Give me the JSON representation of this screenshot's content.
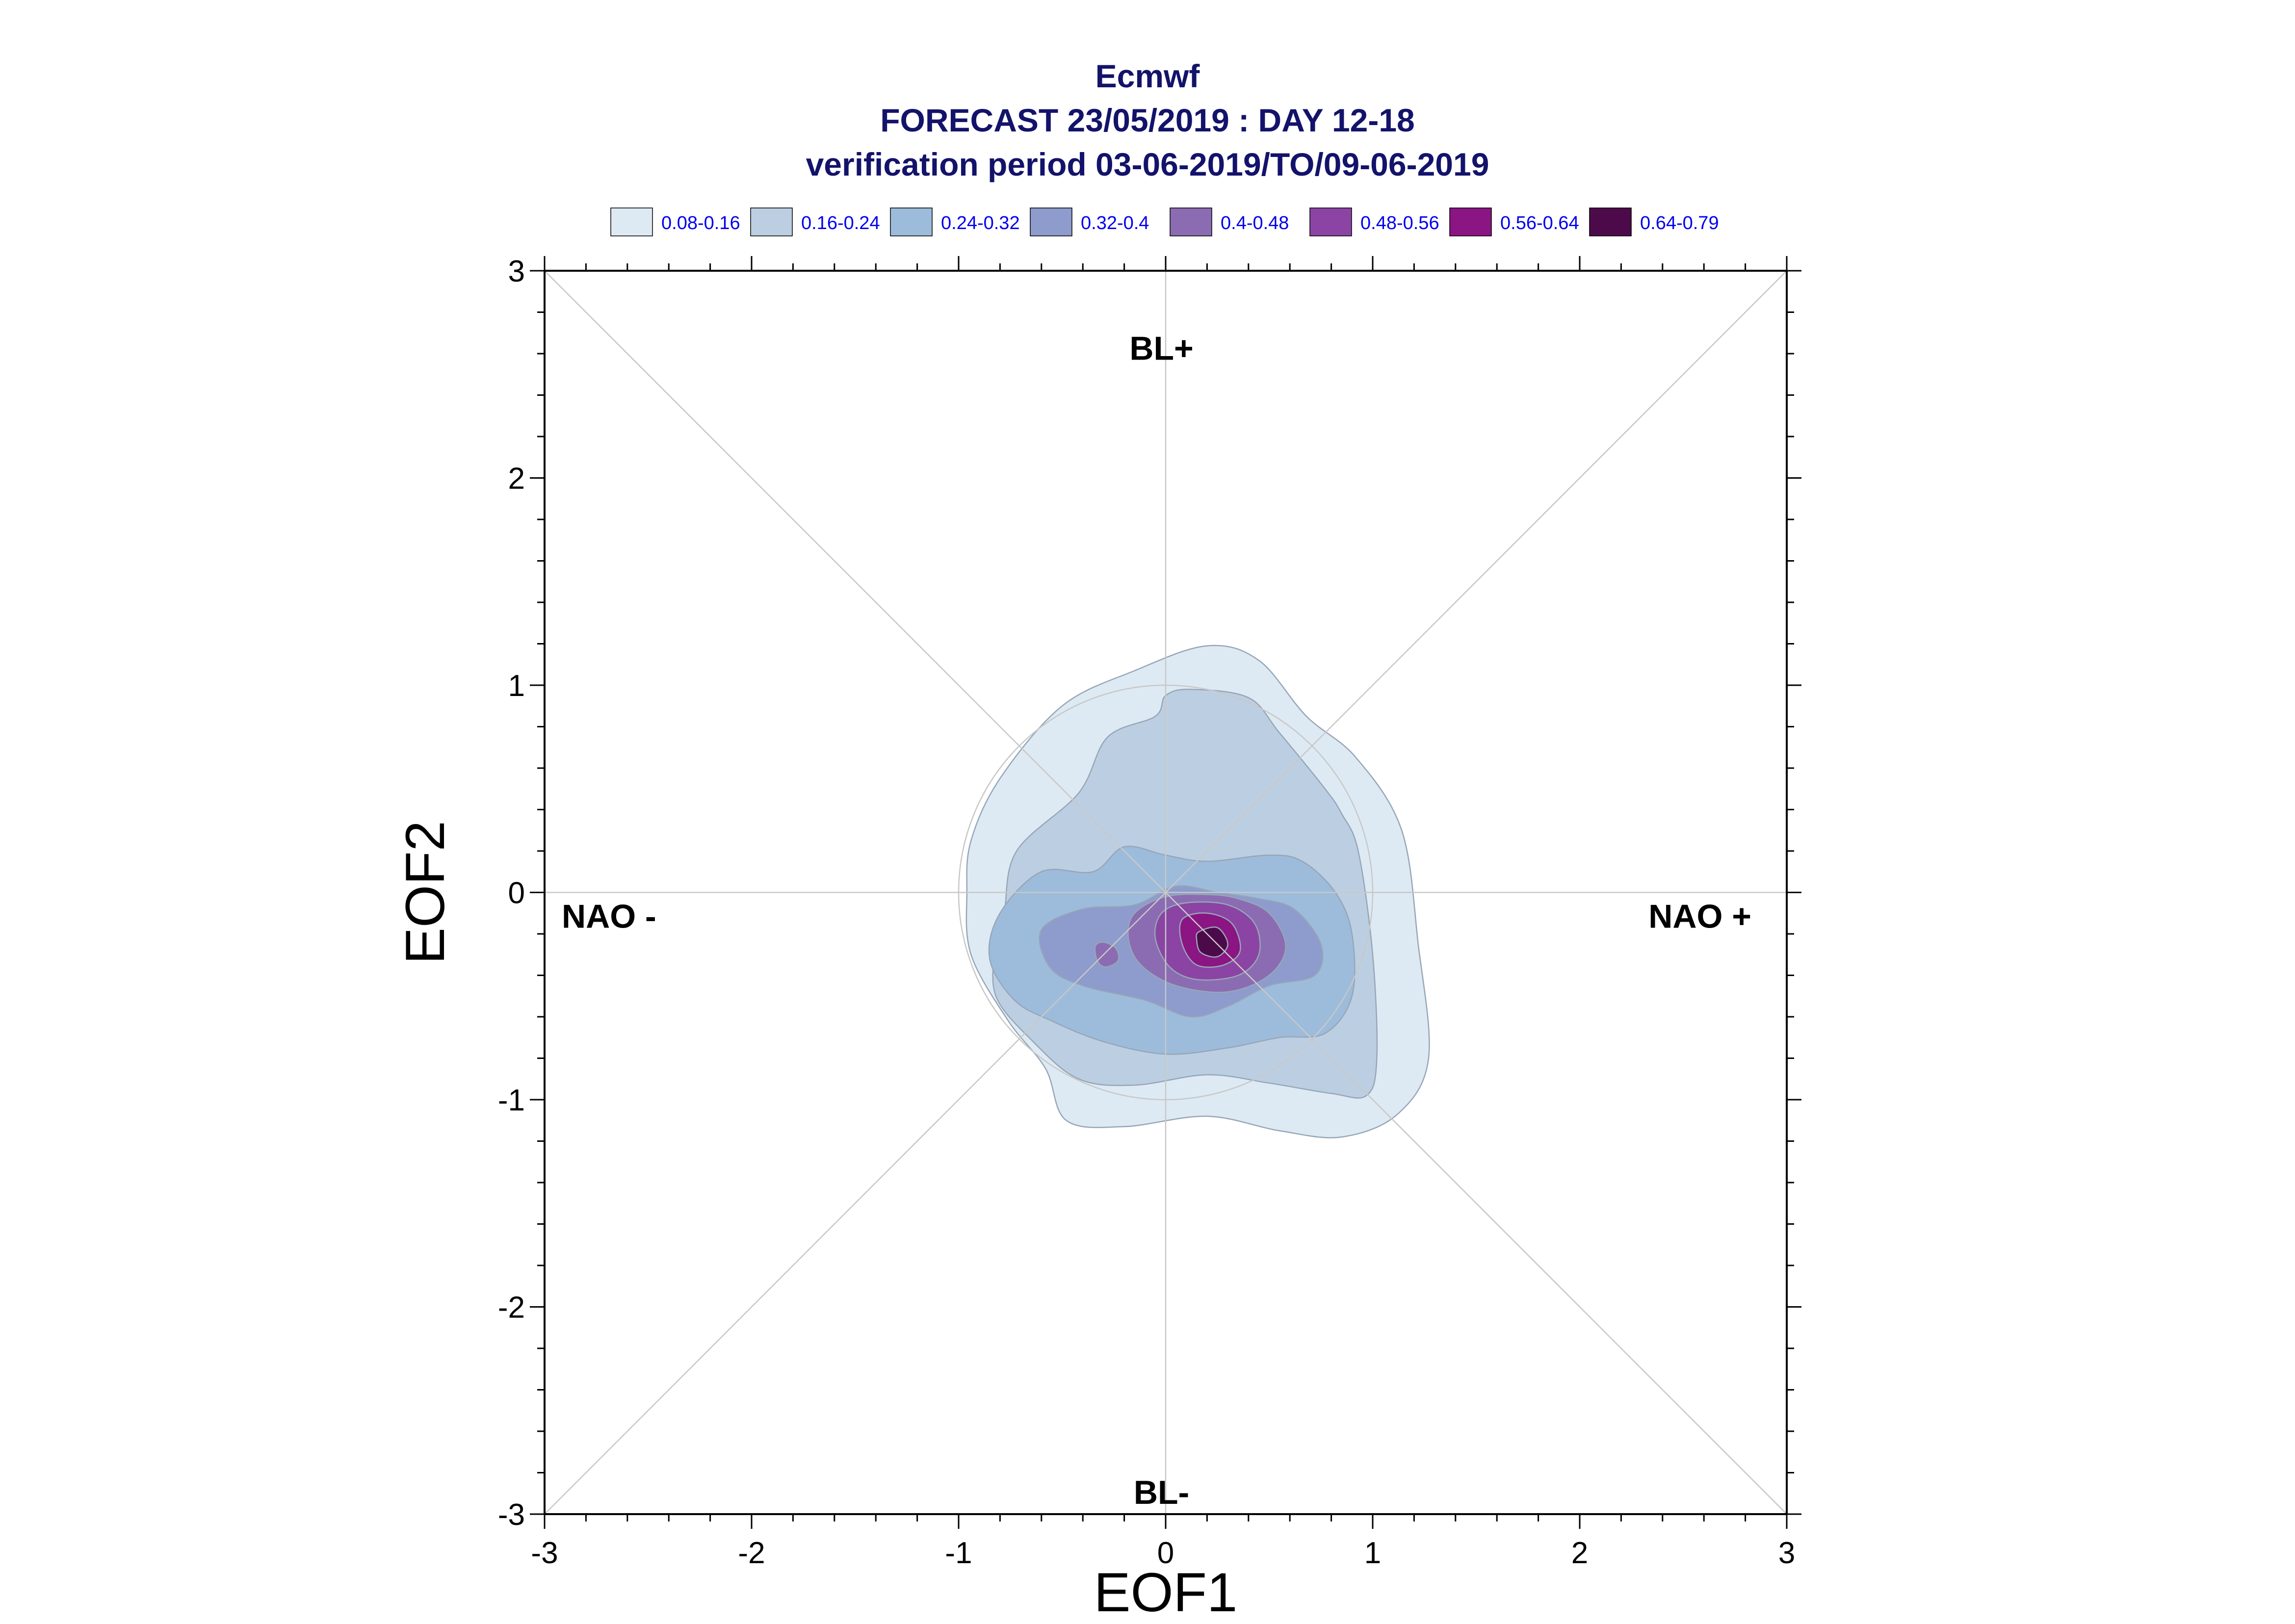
{
  "titles": {
    "line1": "Ecmwf",
    "line2": "FORECAST 23/05/2019 : DAY 12-18",
    "line3": "verification period 03-06-2019/TO/09-06-2019"
  },
  "chart_data": {
    "type": "contour",
    "xlabel": "EOF1",
    "ylabel": "EOF2",
    "xlim": [
      -3,
      3
    ],
    "ylim": [
      -3,
      3
    ],
    "x_ticks": [
      "-3",
      "-2",
      "-1",
      "0",
      "1",
      "2",
      "3"
    ],
    "y_ticks": [
      "-3",
      "-2",
      "-1",
      "0",
      "1",
      "2",
      "3"
    ],
    "regime_labels": {
      "top": "BL+",
      "bottom": "BL-",
      "left": "NAO -",
      "right": "NAO +"
    },
    "unit_circle_radius": 1,
    "legend": [
      {
        "label": "0.08-0.16",
        "color": "#deeaf3"
      },
      {
        "label": "0.16-0.24",
        "color": "#bccfe2"
      },
      {
        "label": "0.24-0.32",
        "color": "#9dbcdb"
      },
      {
        "label": "0.32-0.4",
        "color": "#8d9bcd"
      },
      {
        "label": "0.4-0.48",
        "color": "#8b6cb2"
      },
      {
        "label": "0.48-0.56",
        "color": "#8b44a3"
      },
      {
        "label": "0.56-0.64",
        "color": "#8a1583"
      },
      {
        "label": "0.64-0.79",
        "color": "#4d0a4a"
      }
    ],
    "contours": [
      {
        "level": "0.08-0.16",
        "points": [
          [
            -0.94,
            0.25
          ],
          [
            -0.8,
            0.55
          ],
          [
            -0.5,
            0.9
          ],
          [
            -0.15,
            1.07
          ],
          [
            0.2,
            1.19
          ],
          [
            0.45,
            1.12
          ],
          [
            0.68,
            0.85
          ],
          [
            0.92,
            0.65
          ],
          [
            1.14,
            0.3
          ],
          [
            1.22,
            -0.25
          ],
          [
            1.27,
            -0.8
          ],
          [
            1.12,
            -1.07
          ],
          [
            0.85,
            -1.18
          ],
          [
            0.55,
            -1.15
          ],
          [
            0.2,
            -1.08
          ],
          [
            -0.2,
            -1.13
          ],
          [
            -0.48,
            -1.1
          ],
          [
            -0.58,
            -0.85
          ],
          [
            -0.76,
            -0.62
          ],
          [
            -0.94,
            -0.3
          ],
          [
            -0.96,
            0.0
          ]
        ]
      },
      {
        "level": "0.16-0.24",
        "points": [
          [
            -0.78,
            -0.1
          ],
          [
            -0.72,
            0.2
          ],
          [
            -0.42,
            0.48
          ],
          [
            -0.28,
            0.75
          ],
          [
            -0.05,
            0.85
          ],
          [
            0.0,
            0.95
          ],
          [
            0.12,
            0.98
          ],
          [
            0.4,
            0.94
          ],
          [
            0.55,
            0.77
          ],
          [
            0.77,
            0.5
          ],
          [
            0.85,
            0.38
          ],
          [
            0.93,
            0.2
          ],
          [
            1.0,
            -0.3
          ],
          [
            1.02,
            -0.8
          ],
          [
            0.97,
            -0.98
          ],
          [
            0.8,
            -0.97
          ],
          [
            0.5,
            -0.92
          ],
          [
            0.2,
            -0.88
          ],
          [
            -0.15,
            -0.93
          ],
          [
            -0.42,
            -0.9
          ],
          [
            -0.64,
            -0.72
          ],
          [
            -0.82,
            -0.5
          ],
          [
            -0.82,
            -0.25
          ]
        ]
      },
      {
        "level": "0.24-0.32",
        "points": [
          [
            -0.8,
            -0.1
          ],
          [
            -0.6,
            0.1
          ],
          [
            -0.35,
            0.1
          ],
          [
            -0.2,
            0.22
          ],
          [
            0.0,
            0.18
          ],
          [
            0.2,
            0.15
          ],
          [
            0.5,
            0.18
          ],
          [
            0.66,
            0.15
          ],
          [
            0.82,
            0.0
          ],
          [
            0.9,
            -0.2
          ],
          [
            0.9,
            -0.5
          ],
          [
            0.77,
            -0.68
          ],
          [
            0.55,
            -0.7
          ],
          [
            0.3,
            -0.75
          ],
          [
            0.0,
            -0.78
          ],
          [
            -0.3,
            -0.72
          ],
          [
            -0.55,
            -0.62
          ],
          [
            -0.73,
            -0.52
          ],
          [
            -0.85,
            -0.32
          ]
        ]
      },
      {
        "level": "0.32-0.4",
        "points": [
          [
            -0.6,
            -0.18
          ],
          [
            -0.4,
            -0.08
          ],
          [
            -0.15,
            -0.06
          ],
          [
            0.05,
            0.03
          ],
          [
            0.25,
            0.0
          ],
          [
            0.45,
            -0.03
          ],
          [
            0.62,
            -0.08
          ],
          [
            0.75,
            -0.25
          ],
          [
            0.72,
            -0.4
          ],
          [
            0.5,
            -0.45
          ],
          [
            0.3,
            -0.55
          ],
          [
            0.12,
            -0.6
          ],
          [
            -0.1,
            -0.52
          ],
          [
            -0.4,
            -0.45
          ],
          [
            -0.56,
            -0.36
          ]
        ]
      },
      {
        "level": "0.4-0.48",
        "points": [
          [
            -0.15,
            -0.1
          ],
          [
            0.0,
            -0.02
          ],
          [
            0.2,
            -0.01
          ],
          [
            0.35,
            -0.03
          ],
          [
            0.5,
            -0.1
          ],
          [
            0.58,
            -0.26
          ],
          [
            0.5,
            -0.4
          ],
          [
            0.3,
            -0.48
          ],
          [
            0.05,
            -0.45
          ],
          [
            -0.12,
            -0.35
          ],
          [
            -0.18,
            -0.22
          ]
        ]
      },
      {
        "level": "0.4-0.48",
        "points": [
          [
            -0.34,
            -0.26
          ],
          [
            -0.3,
            -0.24
          ],
          [
            -0.24,
            -0.27
          ],
          [
            -0.23,
            -0.33
          ],
          [
            -0.29,
            -0.36
          ],
          [
            -0.33,
            -0.33
          ]
        ]
      },
      {
        "level": "0.48-0.56",
        "points": [
          [
            -0.02,
            -0.1
          ],
          [
            0.1,
            -0.05
          ],
          [
            0.3,
            -0.06
          ],
          [
            0.43,
            -0.15
          ],
          [
            0.45,
            -0.3
          ],
          [
            0.35,
            -0.4
          ],
          [
            0.15,
            -0.42
          ],
          [
            0.02,
            -0.36
          ],
          [
            -0.05,
            -0.22
          ]
        ]
      },
      {
        "level": "0.56-0.64",
        "points": [
          [
            0.08,
            -0.13
          ],
          [
            0.2,
            -0.1
          ],
          [
            0.32,
            -0.15
          ],
          [
            0.36,
            -0.28
          ],
          [
            0.28,
            -0.35
          ],
          [
            0.15,
            -0.35
          ],
          [
            0.08,
            -0.25
          ]
        ]
      },
      {
        "level": "0.64-0.79",
        "points": [
          [
            0.16,
            -0.19
          ],
          [
            0.25,
            -0.17
          ],
          [
            0.3,
            -0.25
          ],
          [
            0.25,
            -0.31
          ],
          [
            0.17,
            -0.29
          ],
          [
            0.15,
            -0.23
          ]
        ]
      }
    ]
  }
}
